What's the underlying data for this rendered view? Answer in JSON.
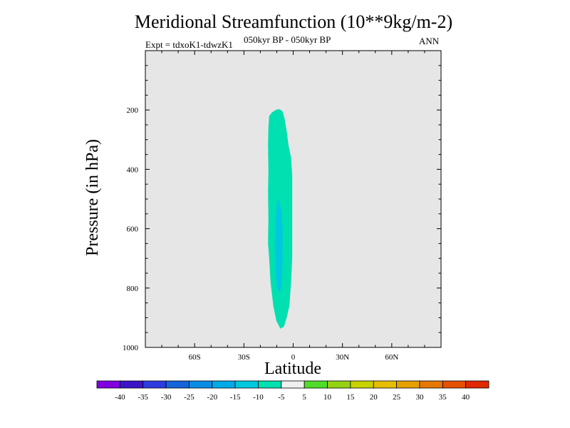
{
  "title": "Meridional Streamfunction (10**9kg/m-2)",
  "experiment": "Expt = tdxoK1-tdwzK1",
  "period": "050kyr BP - 050kyr BP",
  "season": "ANN",
  "colors": {
    "plot_background": "#e6e6e6",
    "outer_contour_fill": "#00e0b0",
    "inner_contour_fill": "#00c8e0"
  },
  "chart_data": {
    "type": "contour",
    "title": "Meridional Streamfunction (10**9kg/m-2)",
    "xlabel": "Latitude",
    "ylabel": "Pressure (in hPa)",
    "xlim": [
      -90,
      90
    ],
    "ylim": [
      1000,
      0
    ],
    "x_tick_labels": [
      {
        "value": -60,
        "label": "60S"
      },
      {
        "value": -30,
        "label": "30S"
      },
      {
        "value": 0,
        "label": "0"
      },
      {
        "value": 30,
        "label": "30N"
      },
      {
        "value": 60,
        "label": "60N"
      }
    ],
    "y_tick_labels": [
      {
        "value": 200,
        "label": "200"
      },
      {
        "value": 400,
        "label": "400"
      },
      {
        "value": 600,
        "label": "600"
      },
      {
        "value": 800,
        "label": "800"
      },
      {
        "value": 1000,
        "label": "1000"
      }
    ],
    "contours": [
      {
        "level": "-10 to -5",
        "color": "#00e0b0",
        "outline": [
          [
            -8.4,
            197
          ],
          [
            -6.5,
            204
          ],
          [
            -5.2,
            230
          ],
          [
            -4.0,
            270
          ],
          [
            -2.8,
            320
          ],
          [
            -1.3,
            360
          ],
          [
            -0.6,
            420
          ],
          [
            -0.6,
            500
          ],
          [
            -0.6,
            600
          ],
          [
            -0.6,
            700
          ],
          [
            -1.3,
            780
          ],
          [
            -2.3,
            860
          ],
          [
            -4.0,
            900
          ],
          [
            -5.6,
            930
          ],
          [
            -7.8,
            937
          ],
          [
            -10.3,
            910
          ],
          [
            -12.1,
            860
          ],
          [
            -13.8,
            780
          ],
          [
            -14.6,
            700
          ],
          [
            -15.3,
            650
          ],
          [
            -15.1,
            560
          ],
          [
            -15.3,
            480
          ],
          [
            -15.1,
            400
          ],
          [
            -15.3,
            320
          ],
          [
            -15.1,
            260
          ],
          [
            -14.6,
            220
          ],
          [
            -12.9,
            208
          ],
          [
            -10.3,
            199
          ]
        ]
      },
      {
        "level": "-15 to -10",
        "color": "#00c8e0",
        "outline": [
          [
            -8.8,
            500
          ],
          [
            -7.1,
            540
          ],
          [
            -6.5,
            600
          ],
          [
            -6.5,
            680
          ],
          [
            -6.7,
            760
          ],
          [
            -7.3,
            800
          ],
          [
            -8.6,
            815
          ],
          [
            -10.1,
            800
          ],
          [
            -10.8,
            740
          ],
          [
            -11.2,
            660
          ],
          [
            -10.8,
            580
          ],
          [
            -10.1,
            520
          ]
        ]
      }
    ],
    "colorbar": {
      "labels": [
        "-40",
        "-35",
        "-30",
        "-25",
        "-20",
        "-15",
        "-10",
        "-5",
        "5",
        "10",
        "15",
        "20",
        "25",
        "30",
        "35",
        "40"
      ],
      "colors": [
        "#8000e0",
        "#3c14c8",
        "#2d3ce0",
        "#1464dc",
        "#0a8ce6",
        "#00aae6",
        "#00c8e0",
        "#00e0b0",
        "#f0f0f0",
        "#50dc28",
        "#96d214",
        "#c8d200",
        "#e6be00",
        "#e6a000",
        "#e67800",
        "#e65000",
        "#e12800"
      ]
    }
  }
}
